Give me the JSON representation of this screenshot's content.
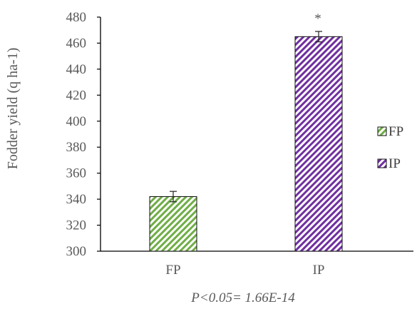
{
  "chart_data": {
    "type": "bar",
    "ylabel": "Fodder yield (q ha-1)",
    "xlabel": "",
    "categories": [
      "FP",
      "IP"
    ],
    "series": [
      {
        "name": "FP",
        "color": "#70AD47",
        "pattern": "diagonal-stripes-green"
      },
      {
        "name": "IP",
        "color": "#7030A0",
        "pattern": "diagonal-stripes-purple"
      }
    ],
    "values": [
      342,
      465
    ],
    "error": [
      4,
      4
    ],
    "ylim": [
      300,
      480
    ],
    "yticks": [
      "300",
      "320",
      "340",
      "360",
      "380",
      "400",
      "420",
      "440",
      "460",
      "480"
    ],
    "significance_marker": "*",
    "annotation": "P<0.05= 1.66E-14",
    "legend_position": "right",
    "grid": false
  }
}
